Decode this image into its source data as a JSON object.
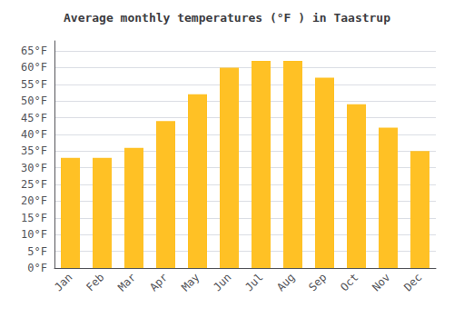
{
  "chart_data": {
    "type": "bar",
    "title": "Average monthly temperatures (°F ) in Taastrup",
    "categories": [
      "Jan",
      "Feb",
      "Mar",
      "Apr",
      "May",
      "Jun",
      "Jul",
      "Aug",
      "Sep",
      "Oct",
      "Nov",
      "Dec"
    ],
    "values": [
      33,
      33,
      36,
      44,
      52,
      60,
      62,
      62,
      57,
      49,
      42,
      35
    ],
    "color": "#FFC125",
    "ylim": [
      0,
      68
    ],
    "yticks": [
      {
        "value": 0,
        "label": "0°F"
      },
      {
        "value": 5,
        "label": "5°F"
      },
      {
        "value": 10,
        "label": "10°F"
      },
      {
        "value": 15,
        "label": "15°F"
      },
      {
        "value": 20,
        "label": "20°F"
      },
      {
        "value": 25,
        "label": "25°F"
      },
      {
        "value": 30,
        "label": "30°F"
      },
      {
        "value": 35,
        "label": "35°F"
      },
      {
        "value": 40,
        "label": "40°F"
      },
      {
        "value": 45,
        "label": "45°F"
      },
      {
        "value": 50,
        "label": "50°F"
      },
      {
        "value": 55,
        "label": "55°F"
      },
      {
        "value": 60,
        "label": "60°F"
      },
      {
        "value": 65,
        "label": "65°F"
      }
    ],
    "grid": true
  }
}
